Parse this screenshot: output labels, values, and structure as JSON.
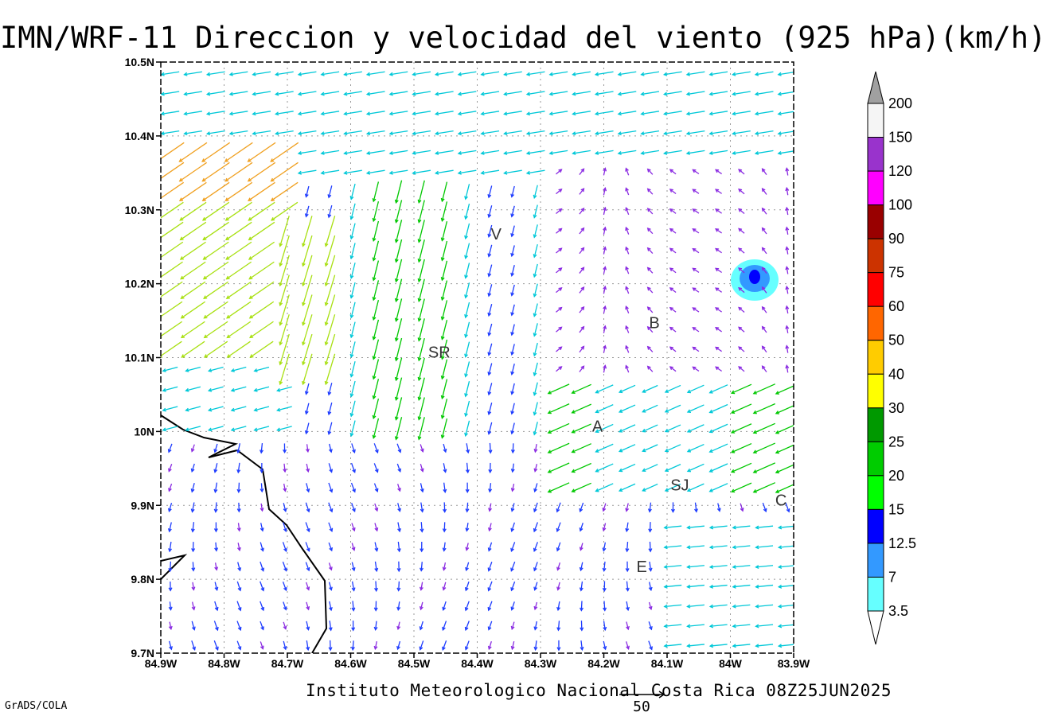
{
  "title": "IMN/WRF-11 Direccion y velocidad del viento (925 hPa)(km/h)",
  "footer": "Instituto Meteorologico Nacional Costa Rica 08Z25JUN2025",
  "grads_label": "GrADS/COLA",
  "reference_vector_label": "50",
  "axes": {
    "x_ticks": [
      "84.9W",
      "84.8W",
      "84.7W",
      "84.6W",
      "84.5W",
      "84.4W",
      "84.3W",
      "84.2W",
      "84.1W",
      "84W",
      "83.9W"
    ],
    "y_ticks": [
      "10.5N",
      "10.4N",
      "10.3N",
      "10.2N",
      "10.1N",
      "10N",
      "9.9N",
      "9.8N",
      "9.7N"
    ],
    "lon_range": [
      -84.9,
      -83.9
    ],
    "lat_range": [
      9.7,
      10.5
    ],
    "grid": true
  },
  "cities": [
    {
      "label": "V",
      "lon": -84.37,
      "lat": 10.26
    },
    {
      "label": "SR",
      "lon": -84.46,
      "lat": 10.1
    },
    {
      "label": "B",
      "lon": -84.12,
      "lat": 10.14
    },
    {
      "label": "A",
      "lon": -84.21,
      "lat": 10.0
    },
    {
      "label": "SJ",
      "lon": -84.08,
      "lat": 9.92
    },
    {
      "label": "C",
      "lon": -83.92,
      "lat": 9.9
    },
    {
      "label": "E",
      "lon": -84.14,
      "lat": 9.81
    }
  ],
  "colorbar": {
    "labels": [
      "200",
      "150",
      "120",
      "100",
      "90",
      "75",
      "60",
      "50",
      "40",
      "30",
      "25",
      "20",
      "15",
      "12.5",
      "7",
      "3.5"
    ],
    "colors": [
      "#a0a0a0",
      "#f5f5f5",
      "#9933cc",
      "#ff00ff",
      "#990000",
      "#cc3300",
      "#ff0000",
      "#ff6600",
      "#ffcc00",
      "#ffff00",
      "#009900",
      "#00cc00",
      "#00ff00",
      "#0000ff",
      "#3399ff",
      "#66ffff"
    ]
  },
  "speed_colors": {
    "calm": "#8a2be2",
    "low": "#1e3cff",
    "moderate": "#00c8d8",
    "fresh": "#00c800",
    "strong": "#a8e010",
    "very_strong": "#f0a020",
    "gale": "#e8204a"
  }
}
